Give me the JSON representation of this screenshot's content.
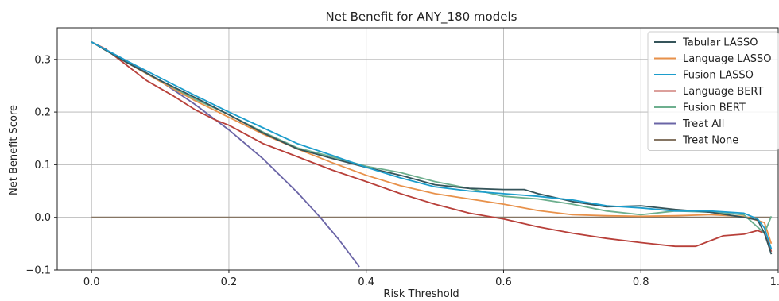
{
  "chart_data": {
    "type": "line",
    "title": "Net Benefit for ANY_180 models",
    "xlabel": "Risk Threshold",
    "ylabel": "Net Benefit Score",
    "xlim": [
      -0.05,
      1.0
    ],
    "ylim": [
      -0.1,
      0.36
    ],
    "xticks": [
      0.0,
      0.2,
      0.4,
      0.6,
      0.8,
      1.0
    ],
    "xtick_labels": [
      "0.0",
      "0.2",
      "0.4",
      "0.6",
      "0.8",
      "1.0"
    ],
    "yticks": [
      -0.1,
      0.0,
      0.1,
      0.2,
      0.3
    ],
    "ytick_labels": [
      "−0.1",
      "0.0",
      "0.1",
      "0.2",
      "0.3"
    ],
    "grid": true,
    "legend_position": "top-right",
    "series": [
      {
        "name": "Tabular LASSO",
        "color": "#35545a",
        "x": [
          0.0,
          0.05,
          0.1,
          0.15,
          0.2,
          0.25,
          0.3,
          0.35,
          0.4,
          0.45,
          0.5,
          0.55,
          0.6,
          0.63,
          0.65,
          0.7,
          0.75,
          0.8,
          0.85,
          0.9,
          0.95,
          0.97,
          0.98,
          0.99
        ],
        "y": [
          0.333,
          0.295,
          0.26,
          0.228,
          0.195,
          0.16,
          0.13,
          0.112,
          0.095,
          0.08,
          0.062,
          0.055,
          0.053,
          0.053,
          0.045,
          0.03,
          0.02,
          0.022,
          0.015,
          0.01,
          0.0,
          -0.005,
          -0.03,
          -0.07
        ]
      },
      {
        "name": "Language LASSO",
        "color": "#e8914a",
        "x": [
          0.0,
          0.05,
          0.1,
          0.15,
          0.2,
          0.25,
          0.3,
          0.35,
          0.4,
          0.45,
          0.5,
          0.55,
          0.6,
          0.65,
          0.7,
          0.75,
          0.8,
          0.85,
          0.9,
          0.95,
          0.98,
          0.99
        ],
        "y": [
          0.333,
          0.295,
          0.258,
          0.222,
          0.19,
          0.158,
          0.13,
          0.104,
          0.08,
          0.06,
          0.045,
          0.035,
          0.025,
          0.013,
          0.005,
          0.003,
          0.002,
          0.003,
          0.005,
          0.002,
          -0.01,
          -0.05
        ]
      },
      {
        "name": "Fusion LASSO",
        "color": "#1c9dcc",
        "x": [
          0.0,
          0.05,
          0.1,
          0.15,
          0.2,
          0.25,
          0.3,
          0.35,
          0.4,
          0.45,
          0.5,
          0.55,
          0.6,
          0.65,
          0.7,
          0.75,
          0.8,
          0.85,
          0.9,
          0.95,
          0.97,
          0.98,
          0.99
        ],
        "y": [
          0.333,
          0.298,
          0.265,
          0.232,
          0.2,
          0.17,
          0.14,
          0.118,
          0.095,
          0.075,
          0.058,
          0.05,
          0.045,
          0.04,
          0.033,
          0.022,
          0.018,
          0.012,
          0.012,
          0.008,
          -0.003,
          -0.02,
          -0.06
        ]
      },
      {
        "name": "Language BERT",
        "color": "#b8403a",
        "x": [
          0.0,
          0.02,
          0.05,
          0.08,
          0.1,
          0.12,
          0.15,
          0.18,
          0.2,
          0.25,
          0.3,
          0.35,
          0.4,
          0.45,
          0.5,
          0.55,
          0.6,
          0.65,
          0.7,
          0.75,
          0.8,
          0.85,
          0.88,
          0.9,
          0.92,
          0.95,
          0.97,
          0.98,
          0.99
        ],
        "y": [
          0.333,
          0.32,
          0.29,
          0.26,
          0.245,
          0.23,
          0.205,
          0.185,
          0.175,
          0.14,
          0.115,
          0.09,
          0.068,
          0.045,
          0.025,
          0.008,
          -0.003,
          -0.018,
          -0.03,
          -0.04,
          -0.048,
          -0.055,
          -0.055,
          -0.045,
          -0.035,
          -0.032,
          -0.025,
          -0.03,
          -0.065
        ]
      },
      {
        "name": "Fusion BERT",
        "color": "#6daf8e",
        "x": [
          0.0,
          0.05,
          0.1,
          0.15,
          0.2,
          0.25,
          0.3,
          0.35,
          0.4,
          0.45,
          0.5,
          0.55,
          0.6,
          0.65,
          0.7,
          0.75,
          0.8,
          0.85,
          0.9,
          0.95,
          0.98,
          0.99
        ],
        "y": [
          0.333,
          0.295,
          0.26,
          0.225,
          0.195,
          0.162,
          0.132,
          0.115,
          0.097,
          0.085,
          0.068,
          0.055,
          0.04,
          0.035,
          0.025,
          0.012,
          0.005,
          0.012,
          0.01,
          0.005,
          -0.03,
          0.002
        ]
      },
      {
        "name": "Treat All",
        "color": "#6a64a6",
        "x": [
          0.0,
          0.05,
          0.1,
          0.15,
          0.2,
          0.25,
          0.3,
          0.333,
          0.36,
          0.39
        ],
        "y": [
          0.333,
          0.298,
          0.259,
          0.215,
          0.166,
          0.111,
          0.047,
          0.0,
          -0.042,
          -0.094
        ]
      },
      {
        "name": "Treat None",
        "color": "#857563",
        "x": [
          0.0,
          0.99
        ],
        "y": [
          0.0,
          0.0
        ]
      }
    ]
  }
}
